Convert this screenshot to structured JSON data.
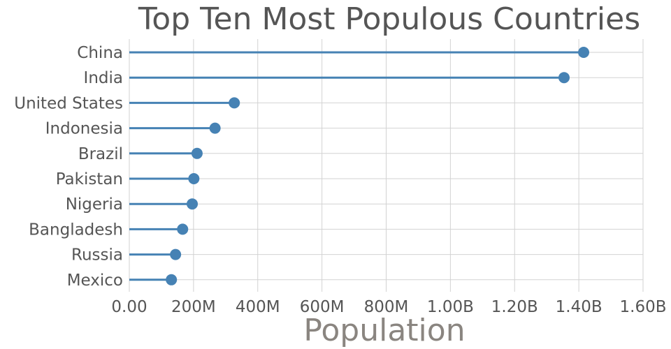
{
  "chart_data": {
    "type": "lollipop",
    "title": "Top Ten Most Populous Countries",
    "xlabel": "Population",
    "ylabel": "",
    "xlim": [
      0,
      1600000000
    ],
    "xticks": [
      0,
      200000000,
      400000000,
      600000000,
      800000000,
      1000000000,
      1200000000,
      1400000000,
      1600000000
    ],
    "xtick_labels": [
      "0.00",
      "200M",
      "400M",
      "600M",
      "800M",
      "1.00B",
      "1.20B",
      "1.40B",
      "1.60B"
    ],
    "categories": [
      "China",
      "India",
      "United States",
      "Indonesia",
      "Brazil",
      "Pakistan",
      "Nigeria",
      "Bangladesh",
      "Russia",
      "Mexico"
    ],
    "values": [
      1415000000,
      1354000000,
      327000000,
      267000000,
      211000000,
      201000000,
      196000000,
      166000000,
      144000000,
      131000000
    ],
    "grid": true,
    "color": "#4682b4"
  }
}
